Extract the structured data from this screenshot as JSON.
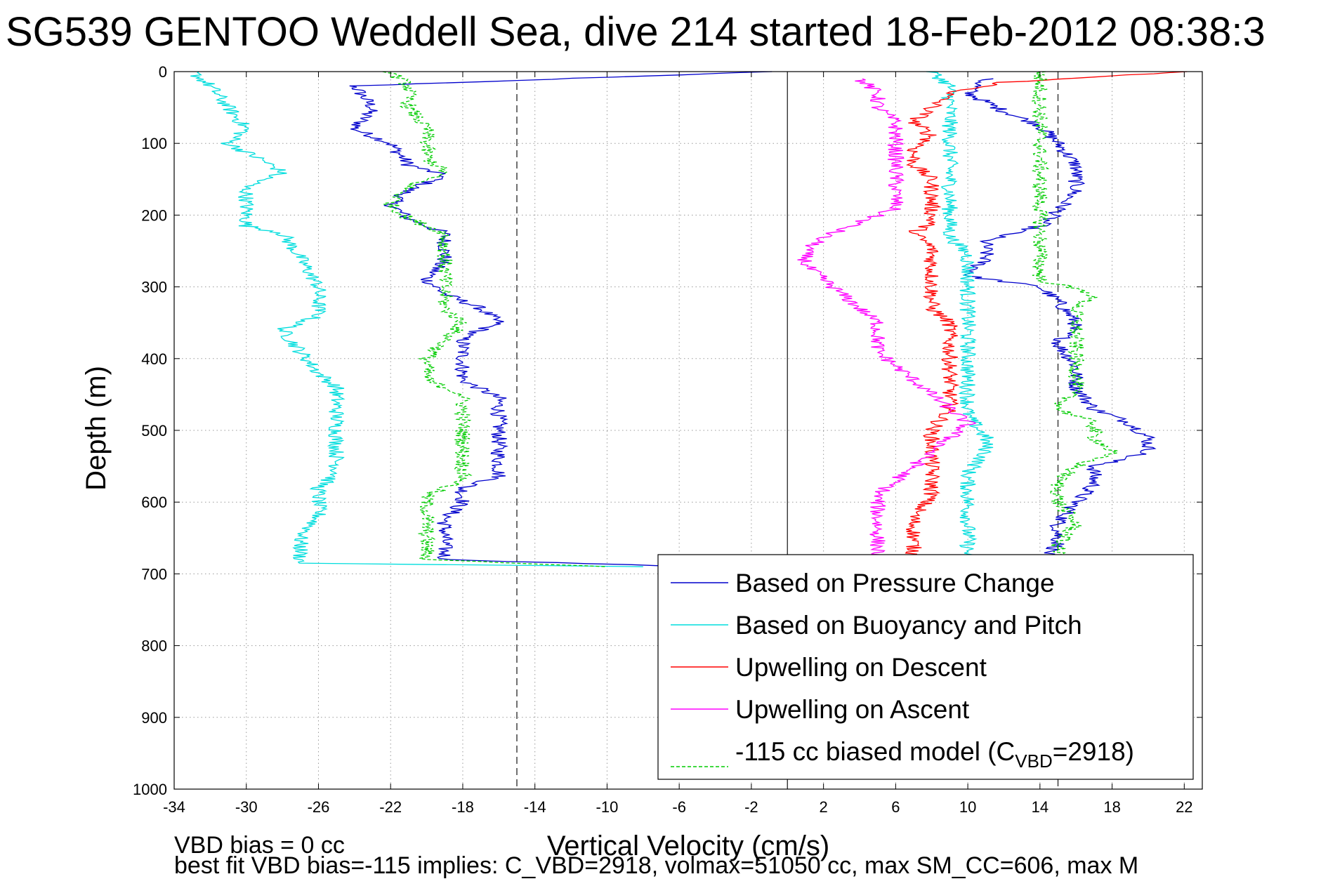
{
  "chart_data": {
    "type": "line",
    "title": "SG539 GENTOO Weddell Sea, dive 214 started 18-Feb-2012 08:38:3",
    "xlabel": "Vertical Velocity (cm/s)",
    "ylabel": "Depth (m)",
    "xlim": [
      -34,
      23
    ],
    "ylim": [
      1000,
      0
    ],
    "y_reversed": true,
    "x_ticks": [
      -34,
      -30,
      -26,
      -22,
      -18,
      -14,
      -10,
      -6,
      -2,
      2,
      6,
      10,
      14,
      18,
      22
    ],
    "y_ticks": [
      0,
      100,
      200,
      300,
      400,
      500,
      600,
      700,
      800,
      900,
      1000
    ],
    "grid": true,
    "legend_position": "bottom-right",
    "reference_lines": [
      {
        "x": -15,
        "style": "dashed"
      },
      {
        "x": 0,
        "style": "solid"
      },
      {
        "x": 15,
        "style": "dashed"
      }
    ],
    "series": [
      {
        "name": "Based on Pressure Change",
        "color": "#0000cc",
        "style": "solid",
        "points": [
          [
            -1,
            0
          ],
          [
            -24,
            20
          ],
          [
            -23,
            50
          ],
          [
            -24,
            80
          ],
          [
            -22,
            100
          ],
          [
            -21,
            130
          ],
          [
            -19,
            145
          ],
          [
            -21,
            165
          ],
          [
            -22,
            185
          ],
          [
            -21,
            205
          ],
          [
            -19,
            225
          ],
          [
            -19,
            260
          ],
          [
            -20,
            290
          ],
          [
            -19,
            310
          ],
          [
            -17,
            330
          ],
          [
            -16,
            350
          ],
          [
            -18,
            370
          ],
          [
            -18,
            400
          ],
          [
            -18,
            430
          ],
          [
            -16,
            455
          ],
          [
            -16,
            480
          ],
          [
            -16,
            510
          ],
          [
            -16,
            540
          ],
          [
            -16,
            565
          ],
          [
            -18,
            580
          ],
          [
            -18,
            600
          ],
          [
            -19,
            625
          ],
          [
            -19,
            650
          ],
          [
            -19,
            680
          ],
          [
            -5,
            690
          ],
          [
            11,
            10
          ],
          [
            10,
            30
          ],
          [
            12,
            55
          ],
          [
            14,
            75
          ],
          [
            15,
            100
          ],
          [
            16,
            130
          ],
          [
            16,
            165
          ],
          [
            15,
            195
          ],
          [
            14,
            215
          ],
          [
            11,
            235
          ],
          [
            11,
            260
          ],
          [
            10,
            285
          ],
          [
            14,
            300
          ],
          [
            15,
            320
          ],
          [
            16,
            350
          ],
          [
            15,
            380
          ],
          [
            16,
            410
          ],
          [
            16,
            440
          ],
          [
            17,
            470
          ],
          [
            19,
            490
          ],
          [
            20,
            510
          ],
          [
            20,
            530
          ],
          [
            17,
            550
          ],
          [
            17,
            575
          ],
          [
            16,
            600
          ],
          [
            15,
            630
          ],
          [
            15,
            660
          ],
          [
            14,
            680
          ]
        ]
      },
      {
        "name": "Based on Buoyancy and Pitch",
        "color": "#00dddd",
        "style": "solid",
        "points": [
          [
            -33,
            0
          ],
          [
            -32,
            20
          ],
          [
            -31,
            50
          ],
          [
            -30,
            80
          ],
          [
            -31,
            100
          ],
          [
            -29,
            125
          ],
          [
            -28,
            140
          ],
          [
            -30,
            160
          ],
          [
            -30,
            190
          ],
          [
            -30,
            215
          ],
          [
            -28,
            225
          ],
          [
            -27,
            260
          ],
          [
            -26,
            300
          ],
          [
            -26,
            340
          ],
          [
            -28,
            360
          ],
          [
            -27,
            390
          ],
          [
            -26,
            420
          ],
          [
            -25,
            440
          ],
          [
            -25,
            480
          ],
          [
            -25,
            520
          ],
          [
            -25,
            560
          ],
          [
            -26,
            580
          ],
          [
            -26,
            620
          ],
          [
            -27,
            650
          ],
          [
            -27,
            685
          ],
          [
            -8,
            690
          ],
          [
            8,
            0
          ],
          [
            9,
            20
          ],
          [
            9,
            50
          ],
          [
            9,
            80
          ],
          [
            9,
            110
          ],
          [
            9,
            150
          ],
          [
            9,
            190
          ],
          [
            9,
            230
          ],
          [
            10,
            255
          ],
          [
            10,
            290
          ],
          [
            10,
            320
          ],
          [
            10,
            350
          ],
          [
            10,
            380
          ],
          [
            10,
            410
          ],
          [
            10,
            450
          ],
          [
            10,
            480
          ],
          [
            11,
            510
          ],
          [
            11,
            530
          ],
          [
            10,
            560
          ],
          [
            10,
            590
          ],
          [
            10,
            620
          ],
          [
            10,
            650
          ],
          [
            10,
            680
          ]
        ]
      },
      {
        "name": "Upwelling on Descent",
        "color": "#ff0000",
        "style": "solid",
        "points": [
          [
            22,
            0
          ],
          [
            12,
            15
          ],
          [
            9,
            30
          ],
          [
            8,
            50
          ],
          [
            7,
            70
          ],
          [
            8,
            90
          ],
          [
            7,
            110
          ],
          [
            7,
            130
          ],
          [
            8,
            150
          ],
          [
            8,
            170
          ],
          [
            8,
            190
          ],
          [
            8,
            210
          ],
          [
            7,
            225
          ],
          [
            8,
            245
          ],
          [
            8,
            270
          ],
          [
            8,
            300
          ],
          [
            8,
            330
          ],
          [
            9,
            350
          ],
          [
            9,
            380
          ],
          [
            9,
            410
          ],
          [
            9,
            440
          ],
          [
            9,
            470
          ],
          [
            8,
            500
          ],
          [
            8,
            530
          ],
          [
            8,
            560
          ],
          [
            8,
            590
          ],
          [
            7,
            620
          ],
          [
            7,
            650
          ],
          [
            7,
            680
          ]
        ]
      },
      {
        "name": "Upwelling on Ascent",
        "color": "#ff00ff",
        "style": "solid",
        "points": [
          [
            4,
            10
          ],
          [
            5,
            30
          ],
          [
            5,
            50
          ],
          [
            6,
            70
          ],
          [
            6,
            90
          ],
          [
            6,
            110
          ],
          [
            6,
            130
          ],
          [
            6,
            150
          ],
          [
            6,
            170
          ],
          [
            6,
            190
          ],
          [
            4,
            210
          ],
          [
            2,
            230
          ],
          [
            1,
            250
          ],
          [
            1,
            270
          ],
          [
            2,
            290
          ],
          [
            3,
            310
          ],
          [
            4,
            330
          ],
          [
            5,
            350
          ],
          [
            5,
            370
          ],
          [
            5,
            390
          ],
          [
            6,
            410
          ],
          [
            7,
            430
          ],
          [
            8,
            450
          ],
          [
            9,
            470
          ],
          [
            10,
            490
          ],
          [
            9,
            510
          ],
          [
            8,
            530
          ],
          [
            7,
            550
          ],
          [
            6,
            570
          ],
          [
            5,
            590
          ],
          [
            5,
            610
          ],
          [
            5,
            630
          ],
          [
            5,
            660
          ],
          [
            5,
            680
          ]
        ]
      },
      {
        "name": "-115 cc biased model (C_VBD=2918)",
        "color": "#00cc00",
        "style": "dashed",
        "points": [
          [
            -22,
            0
          ],
          [
            -21,
            20
          ],
          [
            -21,
            50
          ],
          [
            -20,
            80
          ],
          [
            -20,
            100
          ],
          [
            -20,
            120
          ],
          [
            -19,
            140
          ],
          [
            -21,
            160
          ],
          [
            -22,
            185
          ],
          [
            -21,
            205
          ],
          [
            -19,
            225
          ],
          [
            -19,
            260
          ],
          [
            -19,
            290
          ],
          [
            -19,
            310
          ],
          [
            -19,
            330
          ],
          [
            -18,
            350
          ],
          [
            -19,
            375
          ],
          [
            -20,
            400
          ],
          [
            -20,
            430
          ],
          [
            -18,
            450
          ],
          [
            -18,
            480
          ],
          [
            -18,
            510
          ],
          [
            -18,
            540
          ],
          [
            -18,
            570
          ],
          [
            -20,
            590
          ],
          [
            -20,
            620
          ],
          [
            -20,
            650
          ],
          [
            -20,
            680
          ],
          [
            -10,
            690
          ],
          [
            14,
            0
          ],
          [
            14,
            20
          ],
          [
            14,
            50
          ],
          [
            14,
            80
          ],
          [
            14,
            110
          ],
          [
            14,
            150
          ],
          [
            14,
            200
          ],
          [
            14,
            230
          ],
          [
            14,
            260
          ],
          [
            14,
            290
          ],
          [
            17,
            310
          ],
          [
            16,
            330
          ],
          [
            16,
            350
          ],
          [
            16,
            380
          ],
          [
            16,
            410
          ],
          [
            16,
            440
          ],
          [
            15,
            470
          ],
          [
            17,
            490
          ],
          [
            17,
            510
          ],
          [
            18,
            530
          ],
          [
            16,
            550
          ],
          [
            15,
            570
          ],
          [
            15,
            600
          ],
          [
            16,
            630
          ],
          [
            15,
            660
          ],
          [
            15,
            680
          ]
        ]
      }
    ]
  },
  "footer": {
    "line1": "VBD bias = 0 cc",
    "line2": "best fit VBD bias=-115 implies: C_VBD=2918, volmax=51050 cc, max SM_CC=606, max M"
  }
}
